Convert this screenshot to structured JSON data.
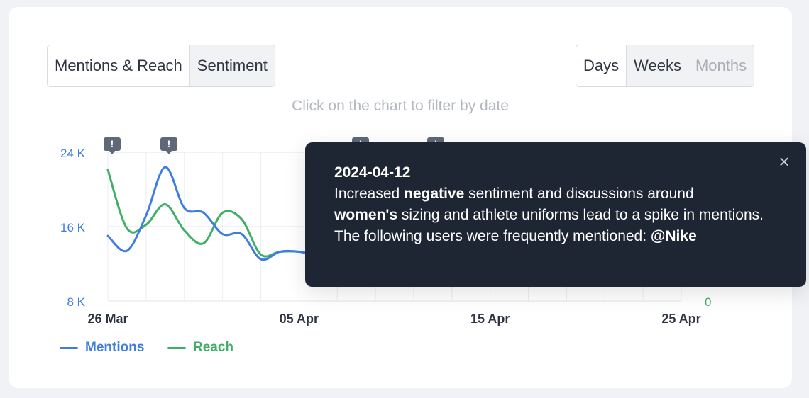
{
  "tabs": {
    "metric": [
      "Mentions & Reach",
      "Sentiment"
    ],
    "period": [
      "Days",
      "Weeks",
      "Months"
    ]
  },
  "hint": "Click on the chart to filter by date",
  "chart_data": {
    "type": "line",
    "x_ticks": [
      "26 Mar",
      "05 Apr",
      "15 Apr",
      "25 Apr"
    ],
    "y_left_ticks": [
      "24 K",
      "16 K",
      "8 K"
    ],
    "y_right_ticks": [
      "0"
    ],
    "x": [
      "2024-03-26",
      "2024-03-27",
      "2024-03-28",
      "2024-03-29",
      "2024-03-30",
      "2024-03-31",
      "2024-04-01",
      "2024-04-02",
      "2024-04-03",
      "2024-04-04",
      "2024-04-05",
      "2024-04-06"
    ],
    "series": [
      {
        "name": "Mentions",
        "color": "#3d7de0",
        "values": [
          15000,
          13400,
          17200,
          22400,
          18000,
          17500,
          15200,
          15200,
          12500,
          13300,
          13300,
          12900
        ]
      },
      {
        "name": "Reach",
        "color": "#3fae67",
        "values": [
          22100,
          15800,
          16200,
          18400,
          15600,
          14200,
          17500,
          16800,
          13000,
          13300,
          13300,
          12800
        ]
      }
    ],
    "y_range": [
      8000,
      24000
    ],
    "events": [
      "2024-03-26",
      "2024-03-29",
      "2024-04-07",
      "2024-04-11"
    ]
  },
  "legend": {
    "mentions": "Mentions",
    "reach": "Reach"
  },
  "tooltip": {
    "date": "2024-04-12",
    "line1_pre": "Increased ",
    "line1_bold": "negative",
    "line1_post": " sentiment and discussions around",
    "line2_bold": "women's",
    "line2_post": " sizing and athlete uniforms lead to a spike in mentions.",
    "line3_pre": "The following users were frequently mentioned: ",
    "line3_bold": "@Nike",
    "close": "×"
  },
  "marker_glyph": "!"
}
